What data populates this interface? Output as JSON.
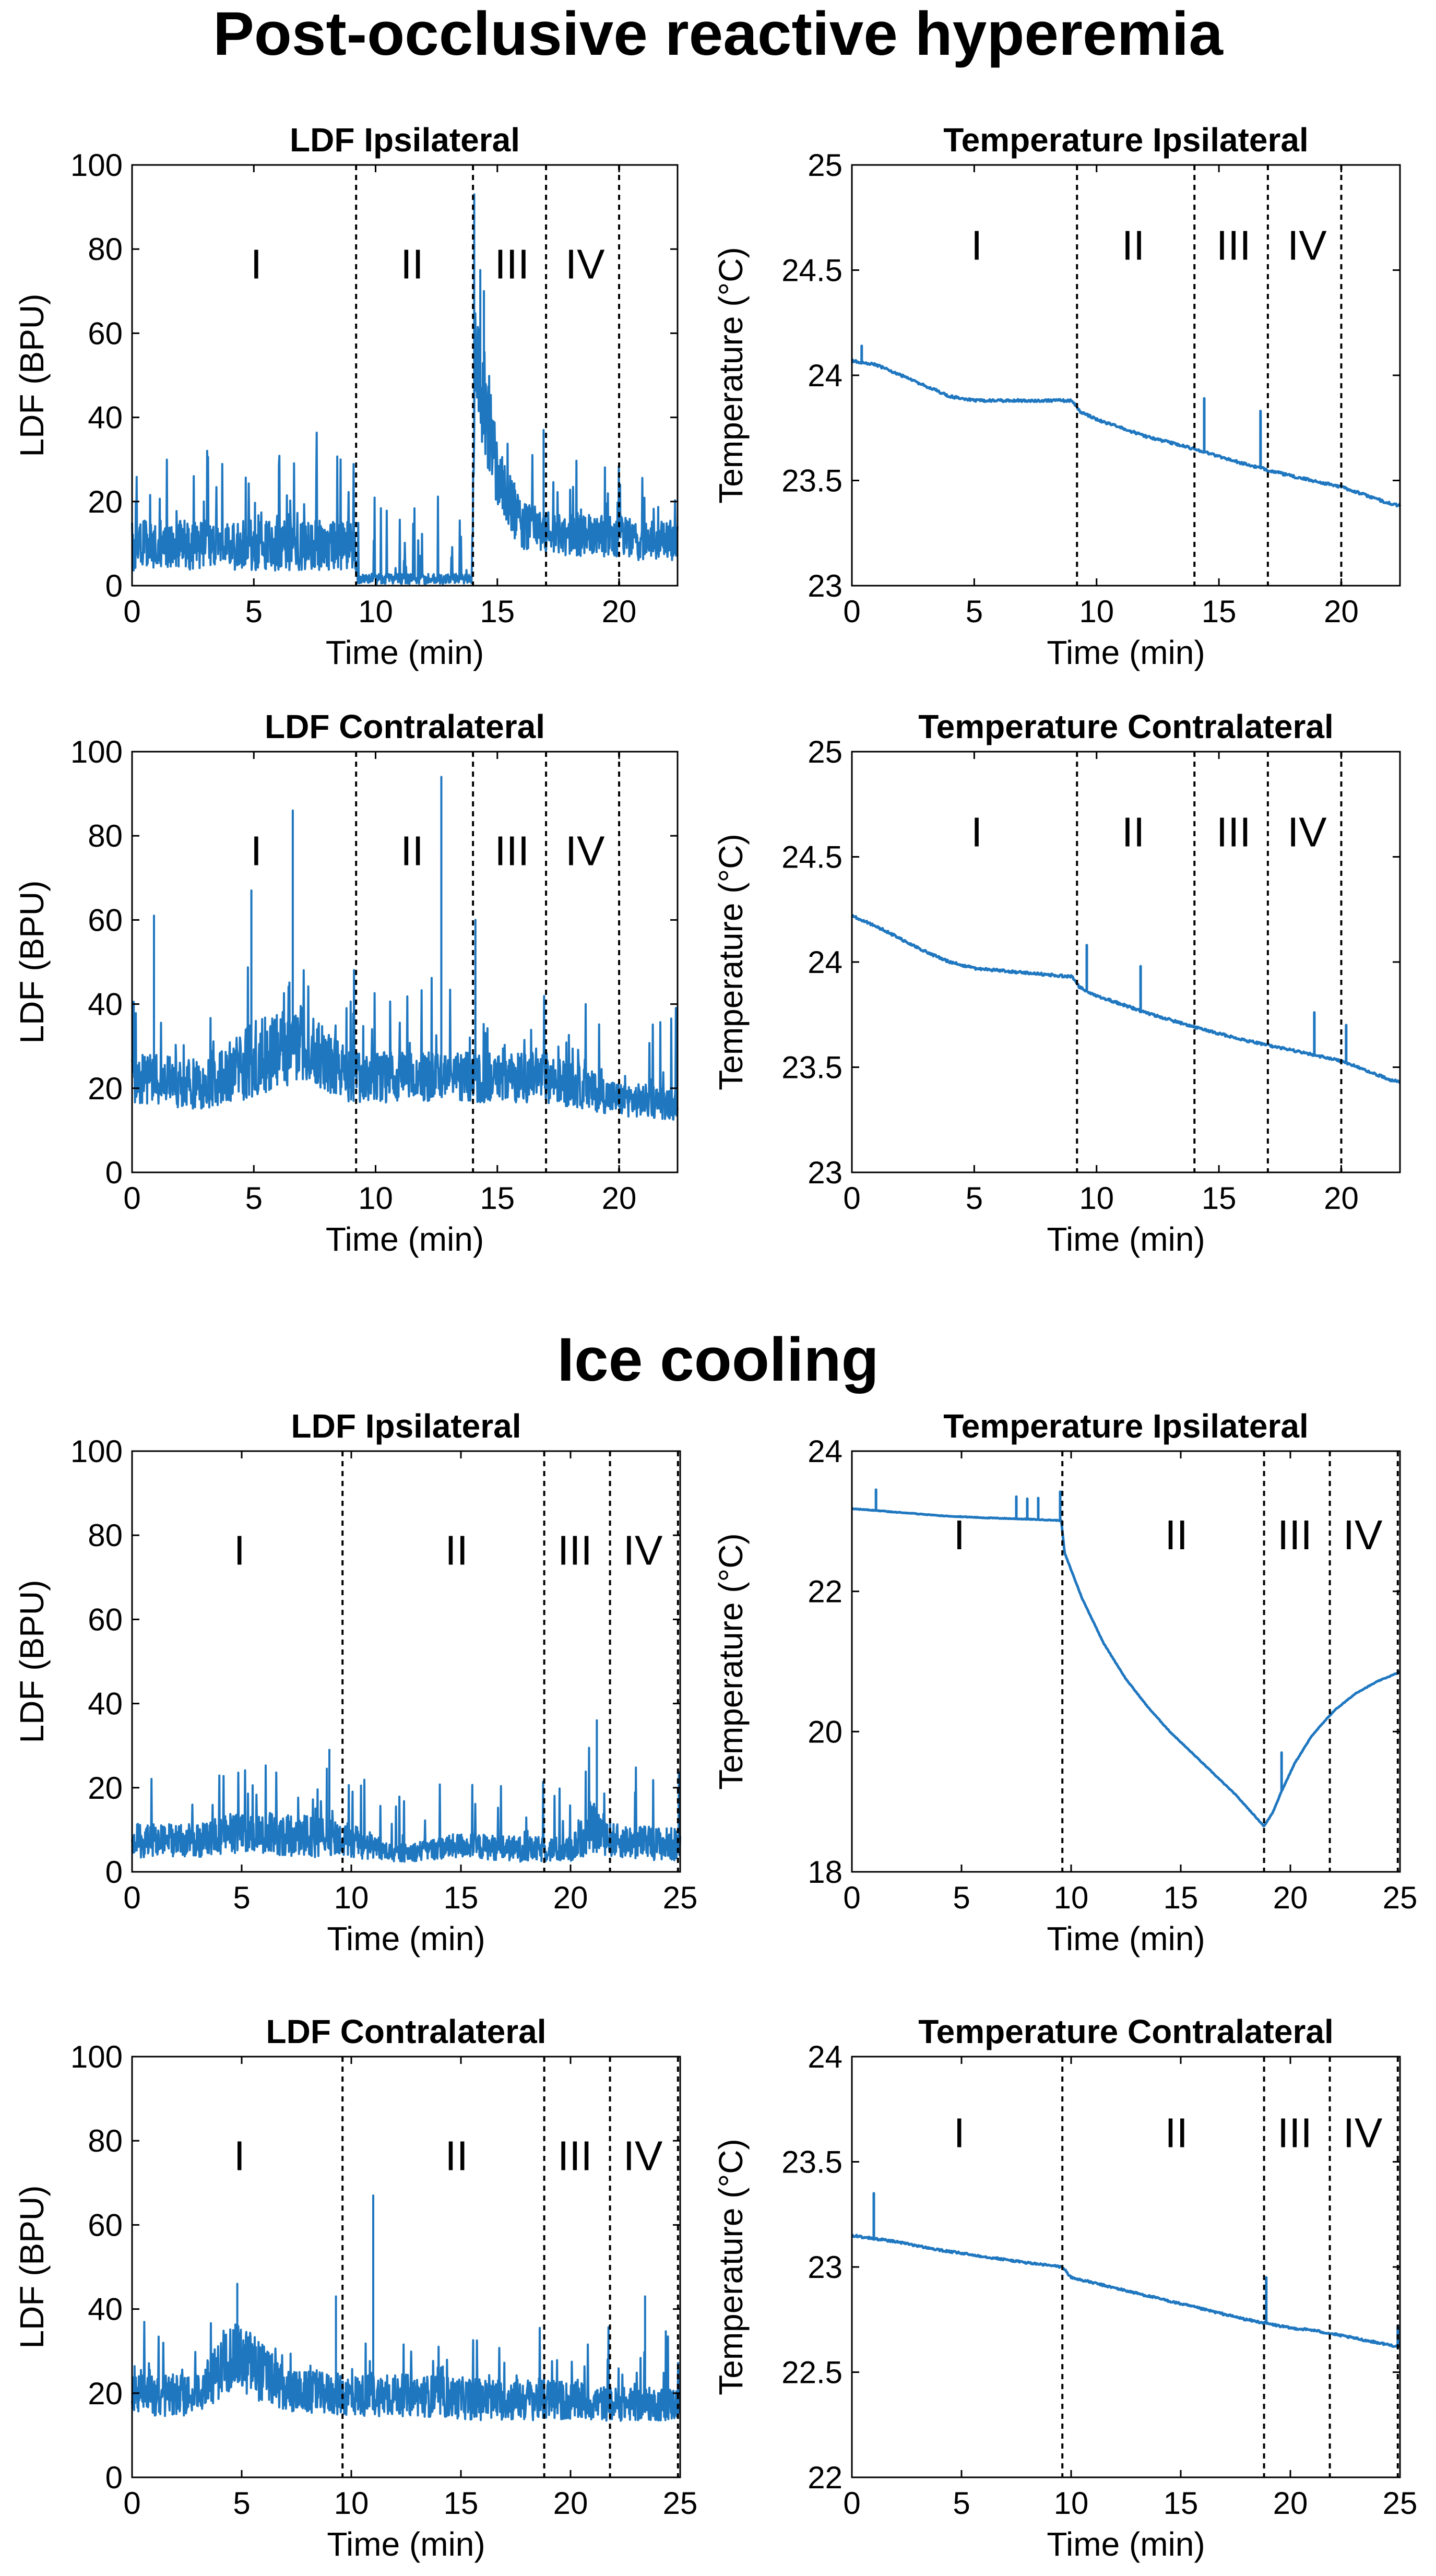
{
  "sections": [
    {
      "title": "Post-occlusive reactive hyperemia"
    },
    {
      "title": "Ice cooling"
    }
  ],
  "colors": {
    "line": "#1f77c0",
    "axis": "#000000",
    "divider": "#000000"
  },
  "chart_data": [
    {
      "id": "pr_ldf_ipsi",
      "type": "line",
      "title": "LDF Ipsilateral",
      "xlabel": "Time (min)",
      "ylabel": "LDF (BPU)",
      "xlim": [
        0,
        22.4
      ],
      "ylim": [
        0,
        100
      ],
      "xticks": [
        0,
        5,
        10,
        15,
        20
      ],
      "yticks": [
        0,
        20,
        40,
        60,
        80,
        100
      ],
      "phase_boundaries": [
        9.2,
        14.0,
        17.0,
        20.0
      ],
      "phases": [
        {
          "label": "I",
          "x": 5.1,
          "y": 73
        },
        {
          "label": "II",
          "x": 11.5,
          "y": 73
        },
        {
          "label": "III",
          "x": 15.6,
          "y": 73
        },
        {
          "label": "IV",
          "x": 18.6,
          "y": 73
        }
      ],
      "series": [
        {
          "name": "LDF",
          "kind": "noisy",
          "x": [
            0,
            9.15,
            9.25,
            13.95,
            14.1,
            14.5,
            15.2,
            16.0,
            17.0,
            22.4
          ],
          "y": [
            9,
            9,
            1.5,
            1.5,
            55,
            40,
            22,
            14,
            12,
            10
          ],
          "noise": [
            6,
            6,
            1.2,
            1.2,
            14,
            12,
            8,
            6,
            5,
            5
          ],
          "spike": 0.06,
          "spikeh": 22,
          "peaks": [
            {
              "x": 14.05,
              "y": 93
            },
            {
              "x": 14.3,
              "y": 75
            },
            {
              "x": 14.45,
              "y": 70
            },
            {
              "x": 16.9,
              "y": 37
            }
          ],
          "seed": 11
        }
      ]
    },
    {
      "id": "pr_temp_ipsi",
      "type": "line",
      "title": "Temperature Ipsilateral",
      "xlabel": "Time (min)",
      "ylabel": "Temperature (°C)",
      "xlim": [
        0,
        22.4
      ],
      "ylim": [
        23,
        25
      ],
      "xticks": [
        0,
        5,
        10,
        15,
        20
      ],
      "yticks": [
        23,
        23.5,
        24,
        24.5,
        25
      ],
      "phase_boundaries": [
        9.2,
        14.0,
        17.0,
        20.0
      ],
      "phases": [
        {
          "label": "I",
          "x": 5.1,
          "y": 24.55
        },
        {
          "label": "II",
          "x": 11.5,
          "y": 24.55
        },
        {
          "label": "III",
          "x": 15.6,
          "y": 24.55
        },
        {
          "label": "IV",
          "x": 18.6,
          "y": 24.55
        }
      ],
      "series": [
        {
          "name": "Temperature",
          "kind": "smooth",
          "x": [
            0,
            1,
            2,
            3,
            4,
            5,
            6,
            7,
            8,
            9,
            9.3,
            10,
            12,
            14,
            16,
            18,
            20,
            22,
            22.4
          ],
          "y": [
            24.07,
            24.05,
            24.0,
            23.95,
            23.9,
            23.88,
            23.88,
            23.88,
            23.88,
            23.88,
            23.83,
            23.79,
            23.71,
            23.65,
            23.58,
            23.52,
            23.47,
            23.39,
            23.38
          ],
          "noise": 0.006,
          "peaks": [
            {
              "x": 0.4,
              "y": 24.14
            },
            {
              "x": 14.4,
              "y": 23.89
            },
            {
              "x": 16.7,
              "y": 23.83
            }
          ],
          "seed": 12
        }
      ]
    },
    {
      "id": "pr_ldf_contra",
      "type": "line",
      "title": "LDF Contralateral",
      "xlabel": "Time (min)",
      "ylabel": "LDF (BPU)",
      "xlim": [
        0,
        22.4
      ],
      "ylim": [
        0,
        100
      ],
      "xticks": [
        0,
        5,
        10,
        15,
        20
      ],
      "yticks": [
        0,
        20,
        40,
        60,
        80,
        100
      ],
      "phase_boundaries": [
        9.2,
        14.0,
        17.0,
        20.0
      ],
      "phases": [
        {
          "label": "I",
          "x": 5.1,
          "y": 73
        },
        {
          "label": "II",
          "x": 11.5,
          "y": 73
        },
        {
          "label": "III",
          "x": 15.6,
          "y": 73
        },
        {
          "label": "IV",
          "x": 18.6,
          "y": 73
        }
      ],
      "series": [
        {
          "name": "LDF",
          "kind": "noisy",
          "x": [
            0,
            3,
            5,
            7,
            9,
            12,
            14,
            17,
            20,
            22.4
          ],
          "y": [
            22,
            20,
            26,
            30,
            22,
            22,
            22,
            22,
            17,
            16
          ],
          "noise": [
            6,
            6,
            9,
            9,
            6,
            6,
            6,
            6,
            4,
            4
          ],
          "spike": 0.06,
          "spikeh": 20,
          "peaks": [
            {
              "x": 0.9,
              "y": 61
            },
            {
              "x": 4.9,
              "y": 67
            },
            {
              "x": 6.6,
              "y": 86
            },
            {
              "x": 12.7,
              "y": 94
            },
            {
              "x": 14.1,
              "y": 60
            }
          ],
          "seed": 13
        }
      ]
    },
    {
      "id": "pr_temp_contra",
      "type": "line",
      "title": "Temperature Contralateral",
      "xlabel": "Time (min)",
      "ylabel": "Temperature (°C)",
      "xlim": [
        0,
        22.4
      ],
      "ylim": [
        23,
        25
      ],
      "xticks": [
        0,
        5,
        10,
        15,
        20
      ],
      "yticks": [
        23,
        23.5,
        24,
        24.5,
        25
      ],
      "phase_boundaries": [
        9.2,
        14.0,
        17.0,
        20.0
      ],
      "phases": [
        {
          "label": "I",
          "x": 5.1,
          "y": 24.55
        },
        {
          "label": "II",
          "x": 11.5,
          "y": 24.55
        },
        {
          "label": "III",
          "x": 15.6,
          "y": 24.55
        },
        {
          "label": "IV",
          "x": 18.6,
          "y": 24.55
        }
      ],
      "series": [
        {
          "name": "Temperature",
          "kind": "smooth",
          "x": [
            0,
            1,
            2,
            3,
            4,
            5,
            6,
            7,
            8,
            9,
            9.3,
            10,
            12,
            14,
            16,
            18,
            20,
            22,
            22.4
          ],
          "y": [
            24.22,
            24.17,
            24.11,
            24.05,
            24.0,
            23.97,
            23.96,
            23.95,
            23.94,
            23.93,
            23.88,
            23.84,
            23.76,
            23.69,
            23.63,
            23.58,
            23.53,
            23.44,
            23.43
          ],
          "noise": 0.006,
          "peaks": [
            {
              "x": 9.6,
              "y": 24.08
            },
            {
              "x": 11.8,
              "y": 23.98
            },
            {
              "x": 18.9,
              "y": 23.76
            },
            {
              "x": 20.2,
              "y": 23.7
            }
          ],
          "seed": 14
        }
      ]
    },
    {
      "id": "ic_ldf_ipsi",
      "type": "line",
      "title": "LDF Ipsilateral",
      "xlabel": "Time (min)",
      "ylabel": "LDF (BPU)",
      "xlim": [
        0,
        25
      ],
      "ylim": [
        0,
        100
      ],
      "xticks": [
        0,
        5,
        10,
        15,
        20,
        25
      ],
      "yticks": [
        0,
        20,
        40,
        60,
        80,
        100
      ],
      "phase_boundaries": [
        9.6,
        18.8,
        21.8,
        24.9
      ],
      "phases": [
        {
          "label": "I",
          "x": 4.9,
          "y": 73
        },
        {
          "label": "II",
          "x": 14.8,
          "y": 73
        },
        {
          "label": "III",
          "x": 20.2,
          "y": 73
        },
        {
          "label": "IV",
          "x": 23.3,
          "y": 73
        }
      ],
      "series": [
        {
          "name": "LDF",
          "kind": "noisy",
          "x": [
            0,
            3,
            5,
            8,
            10,
            12,
            15,
            18,
            20,
            21,
            22,
            25
          ],
          "y": [
            7,
            7,
            9,
            8,
            7,
            4,
            6,
            5,
            5,
            10,
            7,
            6
          ],
          "noise": [
            4,
            4,
            5,
            5,
            4,
            2,
            3,
            3,
            3,
            6,
            4,
            4
          ],
          "spike": 0.05,
          "spikeh": 18,
          "peaks": [
            {
              "x": 21.2,
              "y": 36
            },
            {
              "x": 9.0,
              "y": 29
            }
          ],
          "seed": 21
        }
      ]
    },
    {
      "id": "ic_temp_ipsi",
      "type": "line",
      "title": "Temperature Ipsilateral",
      "xlabel": "Time (min)",
      "ylabel": "Temperature (°C)",
      "xlim": [
        0,
        25
      ],
      "ylim": [
        18,
        24
      ],
      "xticks": [
        0,
        5,
        10,
        15,
        20,
        25
      ],
      "yticks": [
        18,
        20,
        22,
        24
      ],
      "phase_boundaries": [
        9.6,
        18.8,
        21.8,
        24.9
      ],
      "phases": [
        {
          "label": "I",
          "x": 4.9,
          "y": 22.6
        },
        {
          "label": "II",
          "x": 14.8,
          "y": 22.6
        },
        {
          "label": "III",
          "x": 20.2,
          "y": 22.6
        },
        {
          "label": "IV",
          "x": 23.3,
          "y": 22.6
        }
      ],
      "series": [
        {
          "name": "Temperature",
          "kind": "smooth",
          "x": [
            0,
            2,
            4,
            6,
            8,
            9.55,
            9.7,
            10.5,
            11.5,
            12.5,
            13.5,
            14.5,
            15.5,
            16.5,
            17.5,
            18.8,
            19.2,
            19.6,
            20.2,
            21,
            22,
            23,
            24,
            25
          ],
          "y": [
            23.18,
            23.13,
            23.08,
            23.05,
            23.03,
            23.01,
            22.55,
            21.9,
            21.25,
            20.75,
            20.35,
            20.0,
            19.7,
            19.4,
            19.1,
            18.65,
            18.85,
            19.15,
            19.55,
            19.95,
            20.3,
            20.55,
            20.72,
            20.85
          ],
          "noise": 0.005,
          "peaks": [
            {
              "x": 1.1,
              "y": 23.45
            },
            {
              "x": 7.5,
              "y": 23.35
            },
            {
              "x": 8.0,
              "y": 23.32
            },
            {
              "x": 8.5,
              "y": 23.33
            },
            {
              "x": 9.5,
              "y": 23.42
            },
            {
              "x": 19.6,
              "y": 19.7
            }
          ],
          "seed": 22
        }
      ]
    },
    {
      "id": "ic_ldf_contra",
      "type": "line",
      "title": "LDF Contralateral",
      "xlabel": "Time (min)",
      "ylabel": "LDF (BPU)",
      "xlim": [
        0,
        25
      ],
      "ylim": [
        0,
        100
      ],
      "xticks": [
        0,
        5,
        10,
        15,
        20,
        25
      ],
      "yticks": [
        0,
        20,
        40,
        60,
        80,
        100
      ],
      "phase_boundaries": [
        9.6,
        18.8,
        21.8,
        24.9
      ],
      "phases": [
        {
          "label": "I",
          "x": 4.9,
          "y": 73
        },
        {
          "label": "II",
          "x": 14.8,
          "y": 73
        },
        {
          "label": "III",
          "x": 20.2,
          "y": 73
        },
        {
          "label": "IV",
          "x": 23.3,
          "y": 73
        }
      ],
      "series": [
        {
          "name": "LDF",
          "kind": "noisy",
          "x": [
            0,
            3,
            4.5,
            5.5,
            7,
            10,
            13,
            16,
            19,
            22,
            25
          ],
          "y": [
            19,
            19,
            28,
            26,
            20,
            19,
            19,
            18,
            18,
            17,
            17
          ],
          "noise": [
            5,
            5,
            8,
            8,
            5,
            5,
            5,
            5,
            5,
            4,
            4
          ],
          "spike": 0.05,
          "spikeh": 15,
          "peaks": [
            {
              "x": 4.8,
              "y": 46
            },
            {
              "x": 11.0,
              "y": 67
            },
            {
              "x": 9.3,
              "y": 43
            },
            {
              "x": 23.4,
              "y": 43
            }
          ],
          "seed": 23
        }
      ]
    },
    {
      "id": "ic_temp_contra",
      "type": "line",
      "title": "Temperature Contralateral",
      "xlabel": "Time (min)",
      "ylabel": "Temperature (°C)",
      "xlim": [
        0,
        25
      ],
      "ylim": [
        22,
        24
      ],
      "xticks": [
        0,
        5,
        10,
        15,
        20,
        25
      ],
      "yticks": [
        22,
        22.5,
        23,
        23.5,
        24
      ],
      "phase_boundaries": [
        9.6,
        18.8,
        21.8,
        24.9
      ],
      "phases": [
        {
          "label": "I",
          "x": 4.9,
          "y": 23.57
        },
        {
          "label": "II",
          "x": 14.8,
          "y": 23.57
        },
        {
          "label": "III",
          "x": 20.2,
          "y": 23.57
        },
        {
          "label": "IV",
          "x": 23.3,
          "y": 23.57
        }
      ],
      "series": [
        {
          "name": "Temperature",
          "kind": "smooth",
          "x": [
            0,
            2,
            4,
            6,
            8,
            9.6,
            10,
            12,
            14,
            16,
            18,
            19,
            20,
            21,
            22,
            23,
            24,
            25
          ],
          "y": [
            23.15,
            23.12,
            23.08,
            23.05,
            23.02,
            23.0,
            22.95,
            22.9,
            22.85,
            22.8,
            22.75,
            22.73,
            22.71,
            22.7,
            22.68,
            22.66,
            22.64,
            22.62
          ],
          "noise": 0.005,
          "peaks": [
            {
              "x": 1.0,
              "y": 23.35
            },
            {
              "x": 18.9,
              "y": 22.95
            },
            {
              "x": 24.9,
              "y": 22.72
            }
          ],
          "seed": 24
        }
      ]
    }
  ]
}
